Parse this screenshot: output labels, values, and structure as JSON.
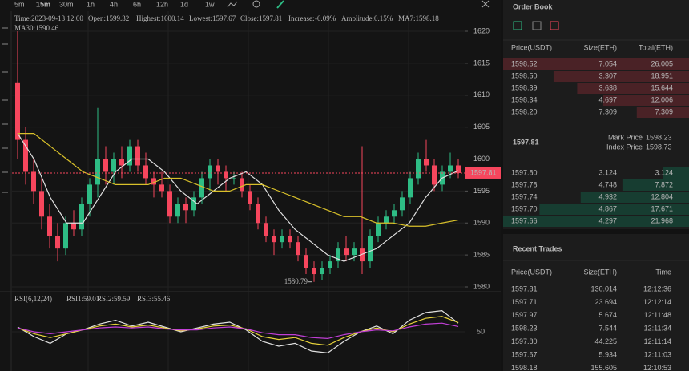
{
  "toolbar": {
    "timeframes": [
      "5m",
      "15m",
      "30m",
      "1h",
      "4h",
      "6h",
      "12h",
      "1d",
      "1w"
    ],
    "active": 1
  },
  "info": [
    {
      "text": "Time:2023-09-13 12:00"
    },
    {
      "text": "Open:1599.32"
    },
    {
      "text": "Highest:1600.14"
    },
    {
      "text": "Lowest:1597.67"
    },
    {
      "text": "Close:1597.81"
    },
    {
      "text": "Increase:"
    },
    {
      "text": "-0.09%",
      "color": "#e8485a"
    },
    {
      "text": "Amplitude:0.15%"
    },
    {
      "text": "MA7:1598.18"
    }
  ],
  "chart": {
    "type": "candlestick",
    "ylim": [
      1580,
      1620
    ],
    "yticks": [
      1580,
      1585,
      1590,
      1595,
      1600,
      1605,
      1610,
      1615,
      1620
    ],
    "up_color": "#2ebd85",
    "down_color": "#f6465d",
    "last_price": 1597.81,
    "low_index": 37,
    "candles": {
      "open": [
        1612,
        1603,
        1598,
        1595,
        1591,
        1588,
        1586,
        1590,
        1589,
        1593,
        1596,
        1600,
        1598,
        1600,
        1599,
        1602,
        1599,
        1597,
        1596,
        1595,
        1591,
        1593,
        1592,
        1594,
        1597,
        1599,
        1598,
        1597,
        1597,
        1595,
        1593,
        1590,
        1588,
        1587,
        1588,
        1587,
        1585,
        1583,
        1582,
        1583,
        1584,
        1586,
        1585,
        1586,
        1584,
        1588,
        1590,
        1591,
        1592,
        1594,
        1597,
        1600,
        1599,
        1596,
        1598,
        1599
      ],
      "high": [
        1620,
        1605,
        1600,
        1597,
        1593,
        1590,
        1591,
        1592,
        1594,
        1597,
        1608,
        1602,
        1601,
        1602,
        1603,
        1603,
        1601,
        1598,
        1598,
        1596,
        1594,
        1594,
        1595,
        1598,
        1600,
        1600,
        1599,
        1598,
        1598,
        1596,
        1594,
        1591,
        1589,
        1589,
        1589,
        1588,
        1586,
        1584,
        1584,
        1585,
        1587,
        1588,
        1587,
        1602,
        1589,
        1591,
        1592,
        1593,
        1595,
        1598,
        1601,
        1603,
        1600,
        1599,
        1601,
        1600
      ],
      "low": [
        1600,
        1596,
        1593,
        1589,
        1586,
        1584,
        1585,
        1588,
        1588,
        1591,
        1594,
        1596,
        1596,
        1597,
        1598,
        1598,
        1596,
        1594,
        1594,
        1590,
        1590,
        1590,
        1591,
        1593,
        1595,
        1596,
        1595,
        1596,
        1594,
        1592,
        1589,
        1587,
        1585,
        1586,
        1586,
        1584,
        1582,
        1580.79,
        1581,
        1582,
        1583,
        1584,
        1584,
        1582,
        1583,
        1587,
        1589,
        1590,
        1591,
        1593,
        1596,
        1598,
        1595,
        1595,
        1597,
        1597
      ],
      "close": [
        1603,
        1598,
        1595,
        1591,
        1588,
        1586,
        1590,
        1589,
        1593,
        1596,
        1600,
        1598,
        1600,
        1599,
        1602,
        1599,
        1597,
        1596,
        1595,
        1591,
        1593,
        1592,
        1594,
        1597,
        1599,
        1598,
        1597,
        1597,
        1595,
        1593,
        1590,
        1588,
        1587,
        1588,
        1587,
        1585,
        1583,
        1582,
        1583,
        1584,
        1586,
        1585,
        1586,
        1584,
        1588,
        1590,
        1591,
        1592,
        1594,
        1597,
        1600,
        1599,
        1596,
        1598,
        1599,
        1597.81
      ]
    },
    "ma7": {
      "color": "#e0e0e0",
      "values": [
        1604,
        1600,
        1594,
        1590,
        1590,
        1594,
        1598,
        1600,
        1600,
        1598,
        1595,
        1593,
        1595,
        1597,
        1598,
        1596,
        1592,
        1589,
        1587,
        1585,
        1584,
        1585,
        1586,
        1588,
        1590,
        1594,
        1597,
        1598.18
      ]
    },
    "ma30": {
      "color": "#d8c02a",
      "label": "MA30:1590.46",
      "values": [
        1604,
        1604,
        1602,
        1600,
        1598,
        1597,
        1596,
        1596,
        1596,
        1597,
        1597,
        1596,
        1595,
        1595,
        1596,
        1596,
        1595,
        1594,
        1593,
        1592,
        1591,
        1591,
        1590,
        1590,
        1589.5,
        1589.5,
        1590,
        1590.46
      ]
    }
  },
  "rsi": {
    "title": "RSI(6,12,24)",
    "ylim": [
      20,
      80
    ],
    "yticks": [
      50
    ],
    "series": [
      {
        "label": "RSI1:59.01",
        "color": "#e0e0e0",
        "values": [
          55,
          45,
          38,
          48,
          52,
          58,
          62,
          56,
          60,
          55,
          50,
          54,
          58,
          60,
          52,
          40,
          35,
          38,
          30,
          28,
          40,
          50,
          56,
          48,
          62,
          70,
          72,
          59.01
        ]
      },
      {
        "label": "RSI2:59.59",
        "color": "#e6d23a",
        "values": [
          54,
          48,
          44,
          48,
          52,
          56,
          58,
          55,
          57,
          54,
          51,
          53,
          56,
          57,
          53,
          45,
          42,
          44,
          38,
          36,
          44,
          50,
          54,
          50,
          58,
          64,
          66,
          59.59
        ]
      },
      {
        "label": "RSI3:55.46",
        "color": "#c13fd6",
        "values": [
          54,
          50,
          48,
          50,
          52,
          54,
          55,
          54,
          55,
          53,
          52,
          52,
          54,
          55,
          53,
          49,
          47,
          47,
          44,
          43,
          47,
          50,
          52,
          51,
          55,
          58,
          59,
          55.46
        ]
      }
    ]
  },
  "order_book": {
    "title": "Order Book",
    "columns": [
      "Price(USDT)",
      "Size(ETH)",
      "Total(ETH)"
    ],
    "asks": [
      [
        "1598.52",
        "7.054",
        "26.005"
      ],
      [
        "1598.50",
        "3.307",
        "18.951"
      ],
      [
        "1598.39",
        "3.638",
        "15.644"
      ],
      [
        "1598.34",
        "4.697",
        "12.006"
      ],
      [
        "1598.20",
        "7.309",
        "7.309"
      ]
    ],
    "last": "1597.81",
    "mark_label": "Mark Price",
    "mark_price": "1598.23",
    "index_label": "Index Price",
    "index_price": "1598.73",
    "bids": [
      [
        "1597.80",
        "3.124",
        "3.124"
      ],
      [
        "1597.78",
        "4.748",
        "7.872"
      ],
      [
        "1597.74",
        "4.932",
        "12.804"
      ],
      [
        "1597.70",
        "4.867",
        "17.671"
      ],
      [
        "1597.66",
        "4.297",
        "21.968"
      ]
    ]
  },
  "recent_trades": {
    "title": "Recent Trades",
    "columns": [
      "Price(USDT)",
      "Size(ETH)",
      "Time"
    ],
    "rows": [
      {
        "cells": [
          "1597.81",
          "130.014",
          "12:12:36"
        ],
        "color": "#2ebd85"
      },
      {
        "cells": [
          "1597.71",
          "23.694",
          "12:12:14"
        ],
        "color": "#f6465d"
      },
      {
        "cells": [
          "1597.97",
          "5.674",
          "12:11:48"
        ],
        "color": "#f6465d"
      },
      {
        "cells": [
          "1598.23",
          "7.544",
          "12:11:34"
        ],
        "color": "#f6465d"
      },
      {
        "cells": [
          "1597.80",
          "44.225",
          "12:11:14"
        ],
        "color": "#f6465d"
      },
      {
        "cells": [
          "1597.67",
          "5.934",
          "12:11:03"
        ],
        "color": "#2ebd85"
      },
      {
        "cells": [
          "1598.18",
          "155.605",
          "12:10:53"
        ],
        "color": "#f6465d"
      }
    ]
  }
}
